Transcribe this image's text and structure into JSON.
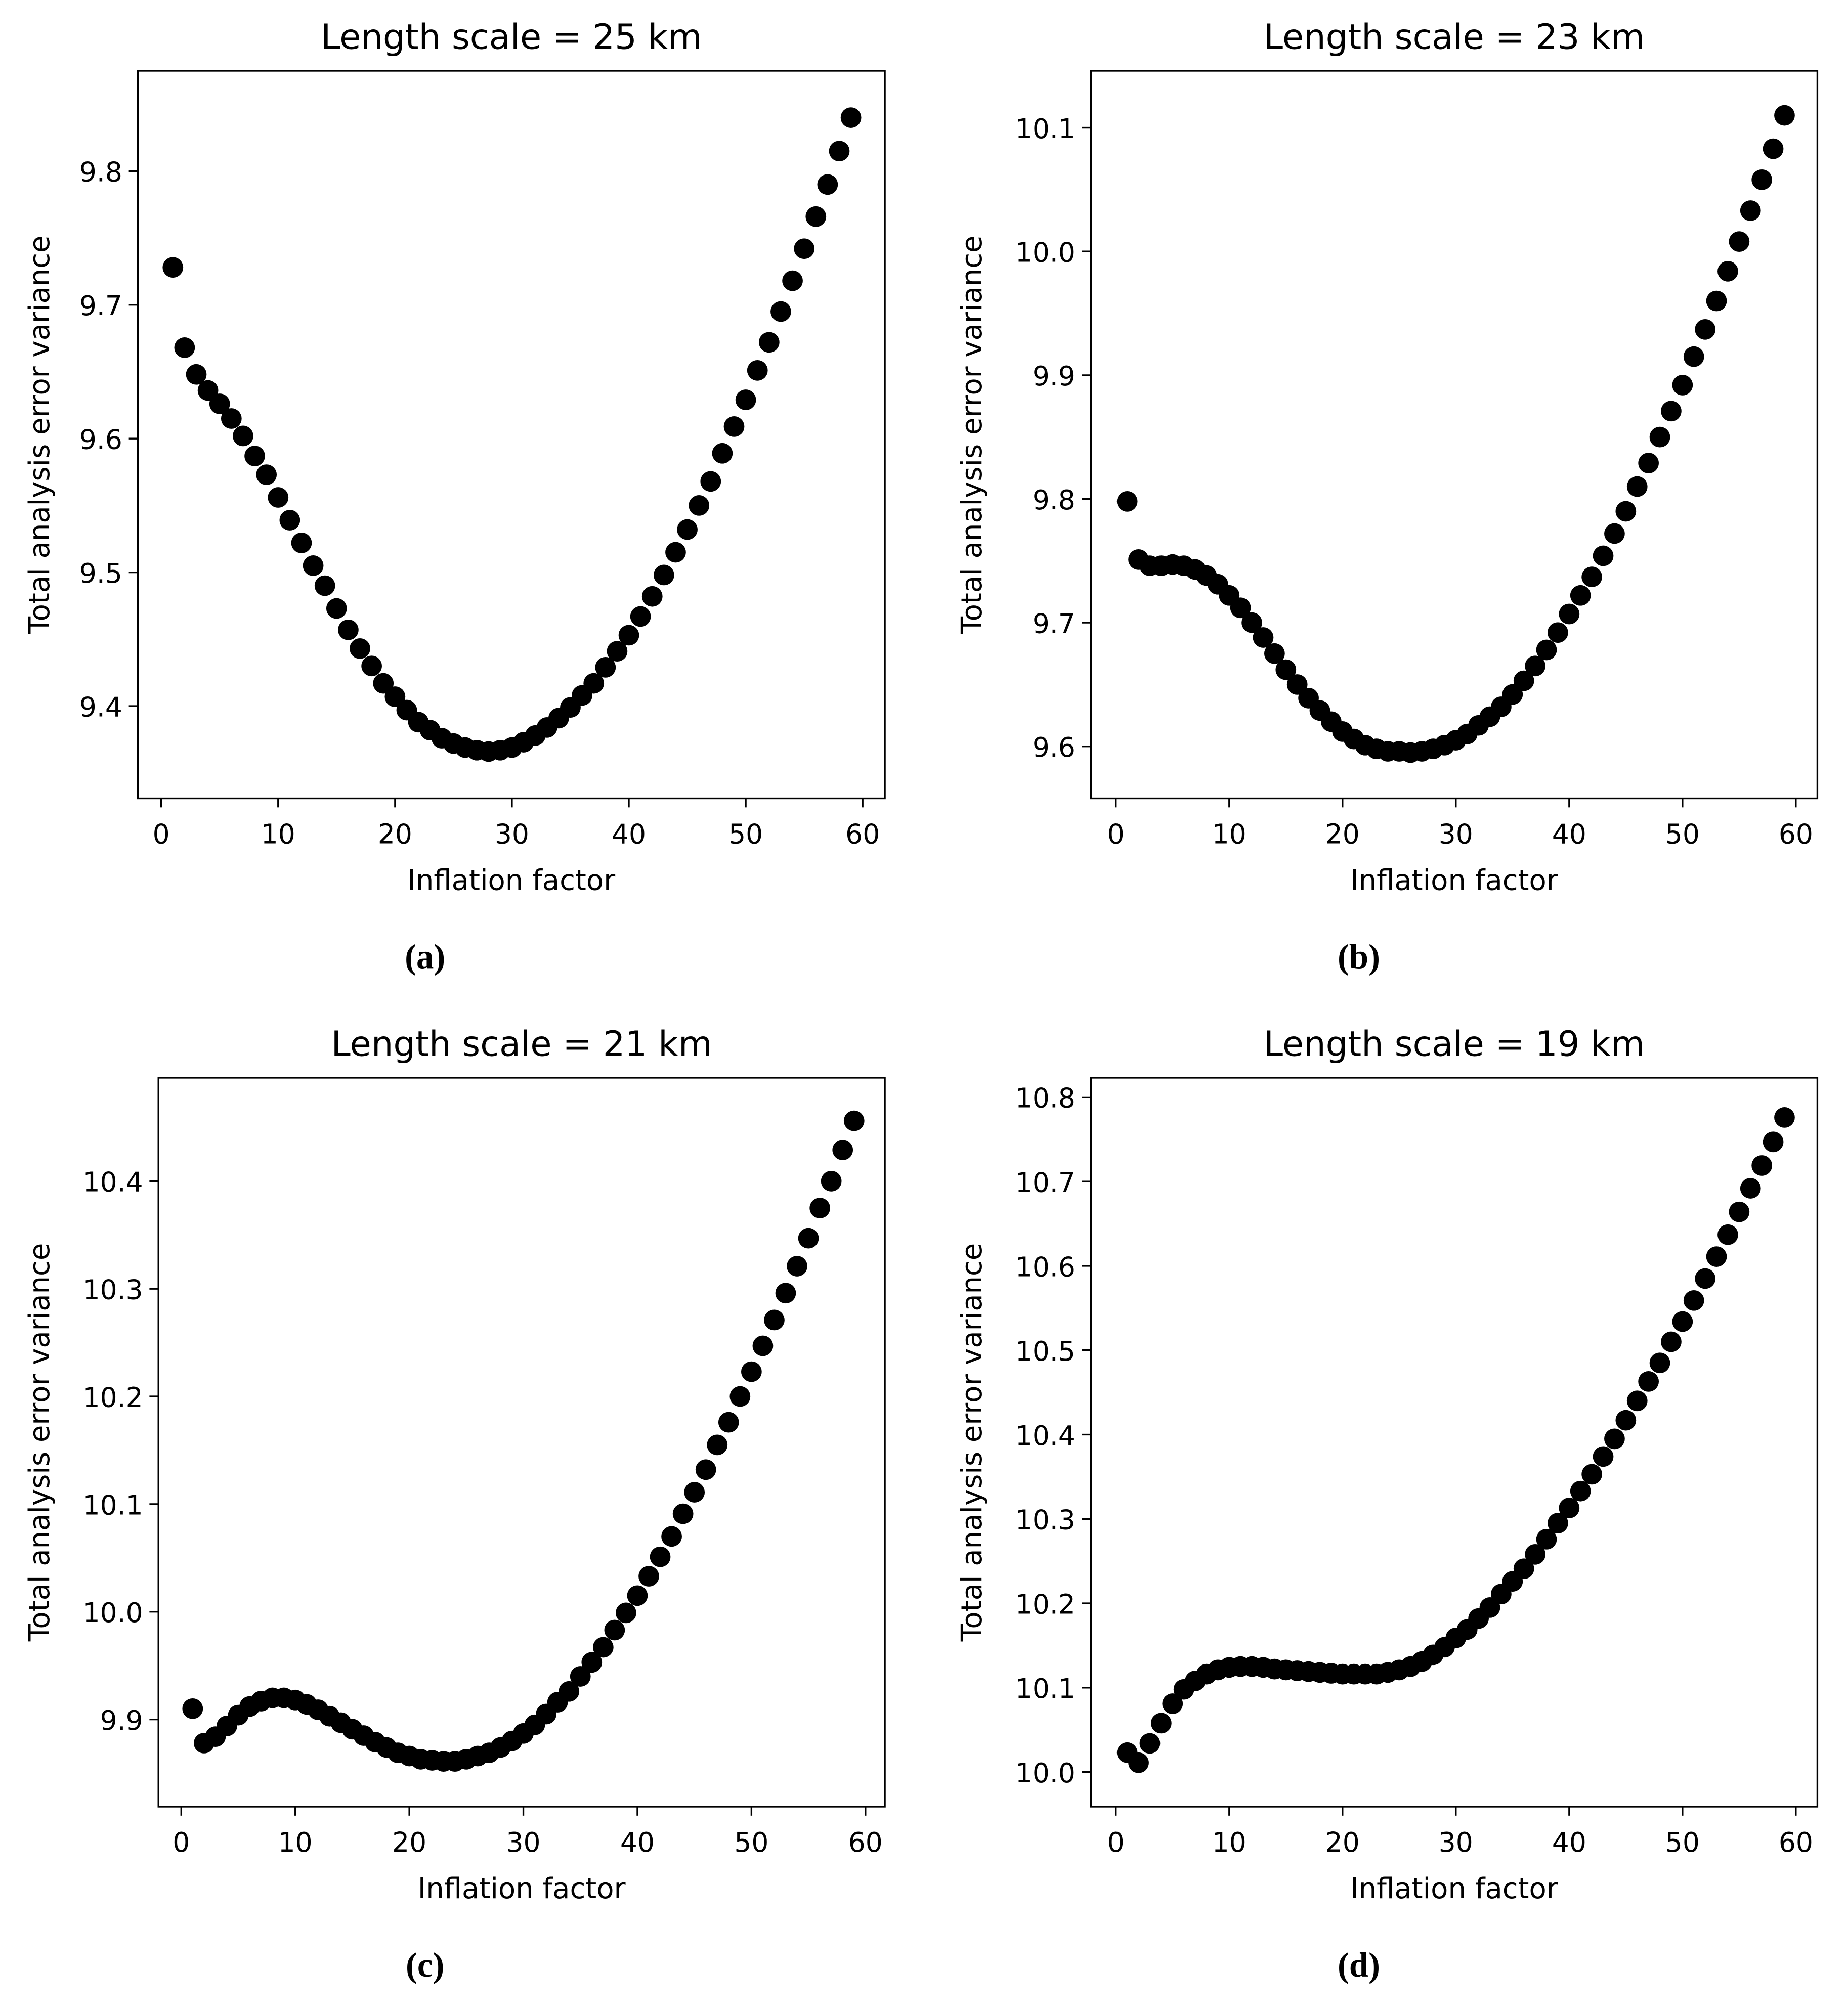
{
  "chart_data": [
    {
      "type": "scatter",
      "title": "Length scale = 25 km",
      "xlabel": "Inflation factor",
      "ylabel": "Total analysis error variance",
      "caption": "(a)",
      "color": "#000000",
      "x": [
        1,
        2,
        3,
        4,
        5,
        6,
        7,
        8,
        9,
        10,
        11,
        12,
        13,
        14,
        15,
        16,
        17,
        18,
        19,
        20,
        21,
        22,
        23,
        24,
        25,
        26,
        27,
        28,
        29,
        30,
        31,
        32,
        33,
        34,
        35,
        36,
        37,
        38,
        39,
        40,
        41,
        42,
        43,
        44,
        45,
        46,
        47,
        48,
        49,
        50,
        51,
        52,
        53,
        54,
        55,
        56,
        57,
        58,
        59
      ],
      "values": [
        9.728,
        9.668,
        9.648,
        9.636,
        9.626,
        9.615,
        9.602,
        9.587,
        9.573,
        9.556,
        9.539,
        9.522,
        9.505,
        9.49,
        9.473,
        9.457,
        9.443,
        9.43,
        9.417,
        9.407,
        9.397,
        9.388,
        9.382,
        9.376,
        9.372,
        9.369,
        9.367,
        9.366,
        9.367,
        9.369,
        9.373,
        9.378,
        9.384,
        9.391,
        9.399,
        9.408,
        9.417,
        9.429,
        9.441,
        9.453,
        9.467,
        9.482,
        9.498,
        9.515,
        9.532,
        9.55,
        9.568,
        9.589,
        9.609,
        9.629,
        9.651,
        9.672,
        9.695,
        9.718,
        9.742,
        9.766,
        9.79,
        9.815,
        9.84
      ],
      "xlim": [
        -2,
        61.9
      ],
      "ylim": [
        9.331,
        9.875
      ],
      "xticks": [
        0,
        10,
        20,
        30,
        40,
        50,
        60
      ],
      "yticks": [
        9.4,
        9.5,
        9.6,
        9.7,
        9.8
      ]
    },
    {
      "type": "scatter",
      "title": "Length scale = 23 km",
      "xlabel": "Inflation factor",
      "ylabel": "Total analysis error variance",
      "caption": "(b)",
      "color": "#000000",
      "x": [
        1,
        2,
        3,
        4,
        5,
        6,
        7,
        8,
        9,
        10,
        11,
        12,
        13,
        14,
        15,
        16,
        17,
        18,
        19,
        20,
        21,
        22,
        23,
        24,
        25,
        26,
        27,
        28,
        29,
        30,
        31,
        32,
        33,
        34,
        35,
        36,
        37,
        38,
        39,
        40,
        41,
        42,
        43,
        44,
        45,
        46,
        47,
        48,
        49,
        50,
        51,
        52,
        53,
        54,
        55,
        56,
        57,
        58,
        59
      ],
      "values": [
        9.798,
        9.751,
        9.746,
        9.746,
        9.747,
        9.746,
        9.743,
        9.738,
        9.731,
        9.722,
        9.712,
        9.7,
        9.688,
        9.675,
        9.662,
        9.65,
        9.639,
        9.629,
        9.62,
        9.612,
        9.606,
        9.601,
        9.598,
        9.596,
        9.596,
        9.595,
        9.596,
        9.598,
        9.601,
        9.605,
        9.61,
        9.617,
        9.624,
        9.632,
        9.642,
        9.653,
        9.665,
        9.678,
        9.692,
        9.707,
        9.722,
        9.737,
        9.754,
        9.772,
        9.79,
        9.81,
        9.829,
        9.85,
        9.871,
        9.892,
        9.915,
        9.937,
        9.96,
        9.984,
        10.008,
        10.033,
        10.058,
        10.083,
        10.11
      ],
      "xlim": [
        -2.2,
        61.9
      ],
      "ylim": [
        9.558,
        10.146
      ],
      "xticks": [
        0,
        10,
        20,
        30,
        40,
        50,
        60
      ],
      "yticks": [
        9.6,
        9.7,
        9.8,
        9.9,
        {
          "value": 10,
          "label": "10.0"
        },
        10.1
      ]
    },
    {
      "type": "scatter",
      "title": "Length scale = 21 km",
      "xlabel": "Inflation factor",
      "ylabel": "Total analysis error variance",
      "caption": "(c)",
      "color": "#000000",
      "x": [
        1,
        2,
        3,
        4,
        5,
        6,
        7,
        8,
        9,
        10,
        11,
        12,
        13,
        14,
        15,
        16,
        17,
        18,
        19,
        20,
        21,
        22,
        23,
        24,
        25,
        26,
        27,
        28,
        29,
        30,
        31,
        32,
        33,
        34,
        35,
        36,
        37,
        38,
        39,
        40,
        41,
        42,
        43,
        44,
        45,
        46,
        47,
        48,
        49,
        50,
        51,
        52,
        53,
        54,
        55,
        56,
        57,
        58,
        59
      ],
      "values": [
        9.91,
        9.878,
        9.884,
        9.894,
        9.904,
        9.912,
        9.917,
        9.92,
        9.92,
        9.918,
        9.914,
        9.909,
        9.903,
        9.897,
        9.891,
        9.885,
        9.879,
        9.874,
        9.869,
        9.866,
        9.863,
        9.862,
        9.861,
        9.861,
        9.863,
        9.866,
        9.869,
        9.874,
        9.88,
        9.887,
        9.895,
        9.905,
        9.916,
        9.926,
        9.94,
        9.953,
        9.967,
        9.983,
        9.999,
        10.015,
        10.033,
        10.051,
        10.07,
        10.091,
        10.111,
        10.132,
        10.155,
        10.176,
        10.2,
        10.223,
        10.247,
        10.271,
        10.296,
        10.321,
        10.347,
        10.375,
        10.4,
        10.429,
        10.456
      ],
      "xlim": [
        -2,
        61.7
      ],
      "ylim": [
        9.819,
        10.496
      ],
      "xticks": [
        0,
        10,
        20,
        30,
        40,
        50,
        60
      ],
      "yticks": [
        9.9,
        {
          "value": 10,
          "label": "10.0"
        },
        10.1,
        10.2,
        10.3,
        10.4
      ]
    },
    {
      "type": "scatter",
      "title": "Length scale = 19 km",
      "xlabel": "Inflation factor",
      "ylabel": "Total analysis error variance",
      "caption": "(d)",
      "color": "#000000",
      "x": [
        1,
        2,
        3,
        4,
        5,
        6,
        7,
        8,
        9,
        10,
        11,
        12,
        13,
        14,
        15,
        16,
        17,
        18,
        19,
        20,
        21,
        22,
        23,
        24,
        25,
        26,
        27,
        28,
        29,
        30,
        31,
        32,
        33,
        34,
        35,
        36,
        37,
        38,
        39,
        40,
        41,
        42,
        43,
        44,
        45,
        46,
        47,
        48,
        49,
        50,
        51,
        52,
        53,
        54,
        55,
        56,
        57,
        58,
        59
      ],
      "values": [
        10.023,
        10.011,
        10.034,
        10.058,
        10.081,
        10.098,
        10.108,
        10.116,
        10.121,
        10.124,
        10.125,
        10.125,
        10.124,
        10.122,
        10.121,
        10.12,
        10.119,
        10.118,
        10.117,
        10.116,
        10.116,
        10.116,
        10.116,
        10.118,
        10.121,
        10.125,
        10.131,
        10.139,
        10.148,
        10.159,
        10.169,
        10.182,
        10.195,
        10.211,
        10.226,
        10.241,
        10.258,
        10.276,
        10.295,
        10.313,
        10.333,
        10.353,
        10.374,
        10.395,
        10.417,
        10.44,
        10.463,
        10.485,
        10.51,
        10.534,
        10.559,
        10.585,
        10.611,
        10.637,
        10.664,
        10.692,
        10.719,
        10.747,
        10.776
      ],
      "xlim": [
        -2.2,
        61.9
      ],
      "ylim": [
        9.959,
        10.823
      ],
      "xticks": [
        0,
        10,
        20,
        30,
        40,
        50,
        60
      ],
      "yticks": [
        {
          "value": 10,
          "label": "10.0"
        },
        10.1,
        10.2,
        10.3,
        10.4,
        10.5,
        10.6,
        10.7,
        10.8
      ]
    }
  ]
}
